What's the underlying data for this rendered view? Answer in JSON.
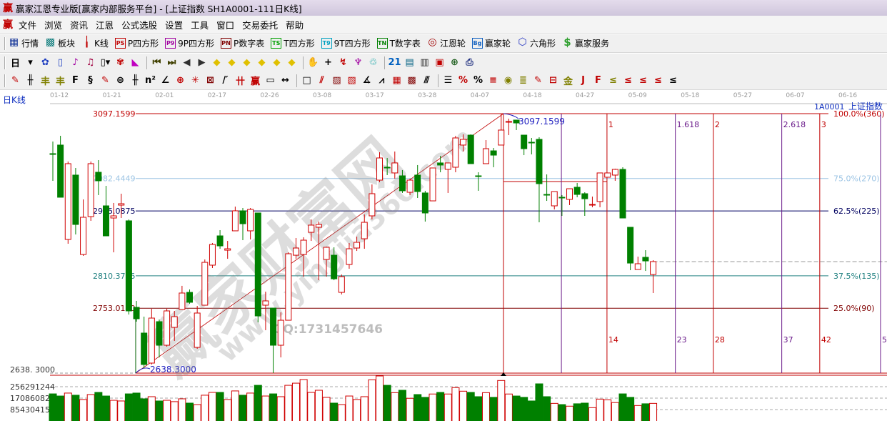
{
  "window": {
    "title": "赢家江恩专业版[赢家内部服务平台] - [上证指数  SH1A0001-111日K线]",
    "logo": "赢"
  },
  "menu": [
    "文件",
    "浏览",
    "资讯",
    "江恩",
    "公式选股",
    "设置",
    "工具",
    "窗口",
    "交易委托",
    "帮助"
  ],
  "toolbar1": [
    {
      "label": "行情",
      "icon": "quote-table-icon",
      "glyph": "▦",
      "color": "#1a3a9a"
    },
    {
      "label": "板块",
      "icon": "sector-icon",
      "glyph": "▩",
      "color": "#0a7a7a"
    },
    {
      "label": "K线",
      "icon": "candlestick-icon",
      "glyph": "╽",
      "color": "#c00000"
    },
    {
      "label": "P四方形",
      "icon": "ps-icon",
      "glyph": "PS",
      "color": "#c00000"
    },
    {
      "label": "9P四方形",
      "icon": "p9-icon",
      "glyph": "P9",
      "color": "#a000a0"
    },
    {
      "label": "P数字表",
      "icon": "pn-icon",
      "glyph": "PN",
      "color": "#800000"
    },
    {
      "label": "T四方形",
      "icon": "ts-icon",
      "glyph": "TS",
      "color": "#00a000"
    },
    {
      "label": "9T四方形",
      "icon": "t9-icon",
      "glyph": "T9",
      "color": "#00a0c0"
    },
    {
      "label": "T数字表",
      "icon": "tn-icon",
      "glyph": "TN",
      "color": "#008000"
    },
    {
      "label": "江恩轮",
      "icon": "gann-wheel-icon",
      "glyph": "◎",
      "color": "#a00000"
    },
    {
      "label": "赢家轮",
      "icon": "big-wheel-icon",
      "glyph": "Bg",
      "color": "#1060c0"
    },
    {
      "label": "六角形",
      "icon": "hexagon-icon",
      "glyph": "⬡",
      "color": "#2030c0"
    },
    {
      "label": "赢家服务",
      "icon": "dollar-icon",
      "glyph": "$",
      "color": "#30a030"
    }
  ],
  "toolbar2": {
    "period_label": "日",
    "icons": [
      {
        "name": "period-dropdown-icon",
        "glyph": "▾",
        "color": "#000"
      },
      {
        "name": "pattern-icon",
        "glyph": "✿",
        "color": "#2040c0"
      },
      {
        "name": "list-icon",
        "glyph": "▯",
        "color": "#2040c0"
      },
      {
        "name": "chart3-icon",
        "glyph": "♪",
        "color": "#a000a0"
      },
      {
        "name": "chart9-icon",
        "glyph": "♫",
        "color": "#a00040"
      },
      {
        "name": "candle-dropdown-icon",
        "glyph": "▯▾",
        "color": "#000"
      },
      {
        "name": "indicator-icon",
        "glyph": "✾",
        "color": "#c00000"
      },
      {
        "name": "color-chart-icon",
        "glyph": "◣",
        "color": "#c000c0"
      },
      {
        "name": "first-icon",
        "glyph": "⏮",
        "color": "#404000"
      },
      {
        "name": "last-icon",
        "glyph": "⏭",
        "color": "#404000"
      },
      {
        "name": "prev-icon",
        "glyph": "◀",
        "color": "#303030"
      },
      {
        "name": "next-icon",
        "glyph": "▶",
        "color": "#303030"
      },
      {
        "name": "arrow-left-icon",
        "glyph": "◆",
        "color": "#e0c000"
      },
      {
        "name": "arrow-up-icon",
        "glyph": "◆",
        "color": "#e0c000"
      },
      {
        "name": "arrow-right-icon",
        "glyph": "◆",
        "color": "#e0c000"
      },
      {
        "name": "arrow-expand-icon",
        "glyph": "◆",
        "color": "#e0c000"
      },
      {
        "name": "arrow-cross-icon",
        "glyph": "◆",
        "color": "#e0c000"
      },
      {
        "name": "arrow-vertical-icon",
        "glyph": "◆",
        "color": "#e0c000"
      },
      {
        "name": "hand-icon",
        "glyph": "✋",
        "color": "#000"
      },
      {
        "name": "crosshair-icon",
        "glyph": "+",
        "color": "#000"
      },
      {
        "name": "draw-line-icon",
        "glyph": "↯",
        "color": "#c00000"
      },
      {
        "name": "tree-icon",
        "glyph": "♆",
        "color": "#a000a0"
      },
      {
        "name": "refresh-icon",
        "glyph": "♲",
        "color": "#00a0a0"
      },
      {
        "name": "calendar-icon",
        "glyph": "21",
        "color": "#0060c0"
      },
      {
        "name": "calculator-icon",
        "glyph": "▤",
        "color": "#006080"
      },
      {
        "name": "notes-icon",
        "glyph": "▥",
        "color": "#303030"
      },
      {
        "name": "save-icon",
        "glyph": "▣",
        "color": "#c00000"
      },
      {
        "name": "network-icon",
        "glyph": "⊕",
        "color": "#206020"
      },
      {
        "name": "printer-icon",
        "glyph": "⎙",
        "color": "#203080"
      }
    ]
  },
  "toolbar3": [
    {
      "name": "pen-icon",
      "glyph": "✎",
      "color": "#c00000"
    },
    {
      "name": "parallel-lines-icon",
      "glyph": "╫",
      "color": "#000"
    },
    {
      "name": "gold-split-icon",
      "glyph": "丰",
      "color": "#808000"
    },
    {
      "name": "gold-split2-icon",
      "glyph": "丰",
      "color": "#808000"
    },
    {
      "name": "fibonacci-icon",
      "glyph": "F",
      "color": "#000"
    },
    {
      "name": "spiral-icon",
      "glyph": "§",
      "color": "#000"
    },
    {
      "name": "pen-ruler-icon",
      "glyph": "✎",
      "color": "#c00000"
    },
    {
      "name": "circle-lines-icon",
      "glyph": "⊜",
      "color": "#000"
    },
    {
      "name": "bars-icon",
      "glyph": "╫",
      "color": "#000"
    },
    {
      "name": "square-n-icon",
      "glyph": "n²",
      "color": "#000"
    },
    {
      "name": "angle-icon",
      "glyph": "∠",
      "color": "#000"
    },
    {
      "name": "target-icon",
      "glyph": "⊕",
      "color": "#c00000"
    },
    {
      "name": "star-icon",
      "glyph": "✳",
      "color": "#c00000"
    },
    {
      "name": "box-icon",
      "glyph": "⊠",
      "color": "#800000"
    },
    {
      "name": "ray-icon",
      "glyph": "/′",
      "color": "#000"
    },
    {
      "name": "gann-icon",
      "glyph": "卄",
      "color": "#c00000"
    },
    {
      "name": "winner-icon",
      "glyph": "赢",
      "color": "#c00000"
    },
    {
      "name": "ruler-icon",
      "glyph": "▭",
      "color": "#000"
    },
    {
      "name": "measure-icon",
      "glyph": "↔",
      "color": "#000"
    },
    {
      "name": "rect-icon",
      "glyph": "□",
      "color": "#000"
    },
    {
      "name": "fan-icon",
      "glyph": "⫽",
      "color": "#c00000"
    },
    {
      "name": "grid-fan-icon",
      "glyph": "▨",
      "color": "#800000"
    },
    {
      "name": "grid-box-icon",
      "glyph": "▧",
      "color": "#c00000"
    },
    {
      "name": "angle2-icon",
      "glyph": "∡",
      "color": "#000"
    },
    {
      "name": "wave-icon",
      "glyph": "⩘",
      "color": "#000"
    },
    {
      "name": "grid-icon",
      "glyph": "▦",
      "color": "#c00000"
    },
    {
      "name": "grid2-icon",
      "glyph": "▩",
      "color": "#800000"
    },
    {
      "name": "channel-icon",
      "glyph": "⫻",
      "color": "#000"
    },
    {
      "name": "ladder-icon",
      "glyph": "☰",
      "color": "#000"
    },
    {
      "name": "percent-red-icon",
      "glyph": "%",
      "color": "#c00000"
    },
    {
      "name": "percent-icon",
      "glyph": "%",
      "color": "#000"
    },
    {
      "name": "percent-lines-icon",
      "glyph": "≡",
      "color": "#c00000"
    },
    {
      "name": "gold-circle-icon",
      "glyph": "◉",
      "color": "#808000"
    },
    {
      "name": "gold-lines-icon",
      "glyph": "≣",
      "color": "#808000"
    },
    {
      "name": "pen2-icon",
      "glyph": "✎",
      "color": "#c00000"
    },
    {
      "name": "box-lines-icon",
      "glyph": "⊟",
      "color": "#c00000"
    },
    {
      "name": "gold-box-icon",
      "glyph": "金",
      "color": "#808000"
    },
    {
      "name": "j-lines-icon",
      "glyph": "J",
      "color": "#c00000"
    },
    {
      "name": "f-lines-icon",
      "glyph": "F",
      "color": "#c00000"
    },
    {
      "name": "gold-fan-icon",
      "glyph": "≤",
      "color": "#808000"
    },
    {
      "name": "fan-red-icon",
      "glyph": "≤",
      "color": "#c00000"
    },
    {
      "name": "fan-red2-icon",
      "glyph": "≤",
      "color": "#c00000"
    },
    {
      "name": "fan-red3-icon",
      "glyph": "≤",
      "color": "#c00000"
    },
    {
      "name": "fan-black-icon",
      "glyph": "≤",
      "color": "#000"
    }
  ],
  "chart_header": {
    "period": "日K线",
    "symbol": "1A0001",
    "name": "上证指数"
  },
  "watermark": {
    "big": "赢家财富网",
    "url": "www.yingjia360.com",
    "qq": "QQ:1731457646"
  },
  "colors": {
    "up": "#d00000",
    "down": "#008000",
    "grid": "#999999"
  },
  "chart_data": {
    "type": "candlestick",
    "dates": [
      "01-12",
      "01-21",
      "02-01",
      "02-17",
      "02-26",
      "03-08",
      "03-17",
      "03-28",
      "04-07",
      "04-18",
      "04-27",
      "05-09",
      "05-18",
      "05-27",
      "06-07",
      "06-16"
    ],
    "price_range": [
      2638.3,
      3097.1599
    ],
    "high_label": "3097.1599",
    "low_label": "2638.3000",
    "low_axis_label": "2638. 3000",
    "current_price": 2835.5,
    "levels": [
      {
        "price": 3097.1599,
        "left": "3097.1599",
        "right": "100.0%(360)",
        "color": "#c00000"
      },
      {
        "price": 2982.4449,
        "left": "2982.4449",
        "right": "75.0%(270)",
        "color": "#9cc4e4"
      },
      {
        "price": 2925.0875,
        "left": "2925.0875",
        "right": "62.5%(225)",
        "color": "#000060"
      },
      {
        "price": 2810.3725,
        "left": "2810.3725",
        "right": "37.5%(135)",
        "color": "#208080"
      },
      {
        "price": 2753.015,
        "left": "2753.0150",
        "right": "25.0%(90)",
        "color": "#800000"
      }
    ],
    "gann_line": {
      "from": {
        "bar": 10.9,
        "price": 2638.3
      },
      "to": {
        "bar": 59.3,
        "price": 3097.1599
      }
    },
    "time_lines": [
      {
        "bars_after_high": 8,
        "top": "",
        "bottom": "",
        "color": "#6a1a8a"
      },
      {
        "bars_after_high": 14,
        "top": "1",
        "bottom": "14",
        "color": "#c00000"
      },
      {
        "bars_after_high": 23,
        "top": "1.618",
        "bottom": "23",
        "color": "#6a1a8a"
      },
      {
        "bars_after_high": 28,
        "top": "2",
        "bottom": "28",
        "color": "#c00000"
      },
      {
        "bars_after_high": 37,
        "top": "2.618",
        "bottom": "37",
        "color": "#6a1a8a"
      },
      {
        "bars_after_high": 42,
        "top": "3",
        "bottom": "42",
        "color": "#c00000"
      },
      {
        "bars_after_high": 50,
        "top": "",
        "bottom": "5",
        "color": "#6a1a8a"
      }
    ],
    "volume_ticks": [
      "256291244",
      "170860829",
      "85430415"
    ],
    "volume_tick_values": [
      256291244,
      170860829,
      85430415
    ],
    "candles": [
      [
        3026.4,
        3047.9,
        2978.4,
        3025.1
      ],
      [
        3041.6,
        3058.0,
        2949.3,
        2949.3
      ],
      [
        2874.7,
        3012.5,
        2867.1,
        3008.7
      ],
      [
        2988.5,
        3001.1,
        2883.5,
        2901.2
      ],
      [
        2848.1,
        2945.5,
        2845.6,
        2913.9
      ],
      [
        2915.1,
        3012.5,
        2907.6,
        3008.7
      ],
      [
        2993.5,
        3015.0,
        2953.1,
        2978.4
      ],
      [
        2934.1,
        2969.5,
        2881.0,
        2881.0
      ],
      [
        2912.6,
        2939.2,
        2851.9,
        2916.4
      ],
      [
        2935.4,
        2955.6,
        2912.6,
        2937.9
      ],
      [
        2907.6,
        2910.1,
        2742.0,
        2748.3
      ],
      [
        2754.6,
        2766.0,
        2729.3,
        2734.4
      ],
      [
        2709.1,
        2738.2,
        2647.2,
        2653.5
      ],
      [
        2656.0,
        2752.1,
        2653.5,
        2735.6
      ],
      [
        2729.3,
        2733.1,
        2666.1,
        2687.6
      ],
      [
        2687.6,
        2752.1,
        2685.1,
        2748.3
      ],
      [
        2719.2,
        2748.3,
        2695.2,
        2738.2
      ],
      [
        2750.8,
        2792.6,
        2750.8,
        2779.9
      ],
      [
        2781.1,
        2786.2,
        2761.0,
        2763.5
      ],
      [
        2683.8,
        2757.1,
        2681.3,
        2744.5
      ],
      [
        2758.4,
        2839.3,
        2758.4,
        2834.2
      ],
      [
        2829.2,
        2868.4,
        2824.1,
        2865.8
      ],
      [
        2881.0,
        2891.1,
        2858.2,
        2863.3
      ],
      [
        2855.7,
        2872.1,
        2840.5,
        2858.2
      ],
      [
        2889.9,
        2932.8,
        2889.9,
        2925.3
      ],
      [
        2925.3,
        2930.3,
        2873.4,
        2902.5
      ],
      [
        2889.9,
        2930.3,
        2874.7,
        2927.8
      ],
      [
        2921.5,
        2921.5,
        2728.1,
        2739.4
      ],
      [
        2758.4,
        2782.4,
        2714.2,
        2766.0
      ],
      [
        2753.3,
        2753.3,
        2638.3,
        2687.6
      ],
      [
        2687.6,
        2745.7,
        2666.1,
        2731.8
      ],
      [
        2731.8,
        2851.9,
        2731.8,
        2849.4
      ],
      [
        2846.8,
        2877.2,
        2840.5,
        2859.5
      ],
      [
        2848.1,
        2878.5,
        2808.9,
        2873.4
      ],
      [
        2887.3,
        2910.1,
        2872.1,
        2900.0
      ],
      [
        2896.2,
        2906.3,
        2802.6,
        2901.2
      ],
      [
        2839.3,
        2862.1,
        2808.9,
        2860.8
      ],
      [
        2846.8,
        2860.8,
        2802.6,
        2805.1
      ],
      [
        2781.1,
        2812.7,
        2777.4,
        2808.9
      ],
      [
        2830.4,
        2868.4,
        2822.9,
        2858.2
      ],
      [
        2859.5,
        2879.7,
        2854.4,
        2869.6
      ],
      [
        2875.9,
        2919.0,
        2858.2,
        2905.0
      ],
      [
        2916.4,
        2972.0,
        2910.1,
        2955.6
      ],
      [
        2979.6,
        3028.9,
        2975.8,
        3018.8
      ],
      [
        3002.4,
        3018.8,
        2988.5,
        3001.1
      ],
      [
        2992.3,
        3030.2,
        2982.2,
        3010.0
      ],
      [
        2987.2,
        2997.3,
        2956.9,
        2960.7
      ],
      [
        2958.1,
        2982.2,
        2953.1,
        2979.6
      ],
      [
        2988.5,
        3006.2,
        2948.0,
        2959.4
      ],
      [
        2956.9,
        2960.7,
        2906.3,
        2921.5
      ],
      [
        2942.9,
        3001.1,
        2942.9,
        3001.1
      ],
      [
        3010.0,
        3022.6,
        2993.5,
        3006.2
      ],
      [
        2998.6,
        3010.0,
        2956.9,
        3010.0
      ],
      [
        3002.4,
        3058.0,
        2993.5,
        3054.2
      ],
      [
        3041.6,
        3060.5,
        3030.2,
        3051.7
      ],
      [
        3059.2,
        3060.5,
        3008.7,
        3008.7
      ],
      [
        2987.2,
        2993.5,
        2960.7,
        2986.5
      ],
      [
        3008.7,
        3050.4,
        3008.7,
        3035.2
      ],
      [
        3031.4,
        3036.5,
        3002.4,
        3023.8
      ],
      [
        3041.6,
        3097.1599,
        3041.6,
        3068.1
      ],
      [
        3082.0,
        3088.3,
        3059.2,
        3083.3
      ],
      [
        3085.8,
        3085.8,
        3068.1,
        3080.7
      ],
      [
        3059.2,
        3059.2,
        3023.8,
        3035.2
      ],
      [
        3046.6,
        3054.2,
        3025.1,
        3046.0
      ],
      [
        3051.7,
        3055.4,
        2905.0,
        2973.3
      ],
      [
        2954.3,
        2989.7,
        2942.9,
        2953.5
      ],
      [
        2934.1,
        2959.4,
        2927.8,
        2959.4
      ],
      [
        2949.3,
        2953.1,
        2916.4,
        2948.5
      ],
      [
        2945.5,
        2964.4,
        2935.4,
        2964.4
      ],
      [
        2967.0,
        2974.6,
        2949.3,
        2954.3
      ],
      [
        2955.6,
        2958.1,
        2916.4,
        2946.7
      ],
      [
        2935.5,
        2950.5,
        2931.6,
        2936.6
      ],
      [
        2941.7,
        2992.3,
        2931.6,
        2992.3
      ],
      [
        2984.7,
        2992.3,
        2984.7,
        2992.3
      ],
      [
        2988.5,
        2999.8,
        2978.4,
        2998.6
      ],
      [
        2998.6,
        3002.4,
        2912.6,
        2912.6
      ],
      [
        2896.2,
        2896.2,
        2820.3,
        2832.9
      ],
      [
        2821.6,
        2844.3,
        2821.6,
        2831.7
      ],
      [
        2843.1,
        2855.7,
        2819.0,
        2836.7
      ],
      [
        2812.7,
        2838.0,
        2779.9,
        2835.5
      ]
    ],
    "volume": [
      208000000,
      192000000,
      214000000,
      198000000,
      166000000,
      203000000,
      219000000,
      192000000,
      160000000,
      155000000,
      208000000,
      214000000,
      171000000,
      187000000,
      155000000,
      160000000,
      150000000,
      171000000,
      139000000,
      128000000,
      198000000,
      219000000,
      219000000,
      166000000,
      230000000,
      198000000,
      214000000,
      272000000,
      192000000,
      208000000,
      187000000,
      272000000,
      288000000,
      315000000,
      219000000,
      235000000,
      182000000,
      139000000,
      128000000,
      192000000,
      166000000,
      187000000,
      313000000,
      349000000,
      272000000,
      217000000,
      235000000,
      175000000,
      203000000,
      182000000,
      207000000,
      219000000,
      207000000,
      255000000,
      228000000,
      219000000,
      187000000,
      217000000,
      182000000,
      308000000,
      207000000,
      192000000,
      182000000,
      155000000,
      283000000,
      187000000,
      137000000,
      128000000,
      116000000,
      134000000,
      139000000,
      105000000,
      169000000,
      164000000,
      143000000,
      208000000,
      182000000,
      121000000,
      134000000,
      137000000
    ]
  }
}
